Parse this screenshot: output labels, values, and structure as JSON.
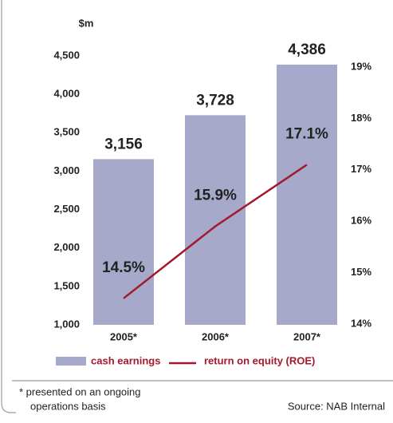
{
  "chart_data": {
    "type": "bar",
    "y_label": "$m",
    "categories": [
      "2005*",
      "2006*",
      "2007*"
    ],
    "series": [
      {
        "name": "cash earnings",
        "type": "bar",
        "color": "#a6a9ca",
        "values": [
          3156,
          3728,
          4386
        ],
        "value_labels": [
          "3,156",
          "3,728",
          "4,386"
        ]
      },
      {
        "name": "return on equity (ROE)",
        "type": "line",
        "axis": "y2",
        "color": "#a3192c",
        "values": [
          14.5,
          15.9,
          17.1
        ],
        "value_labels": [
          "14.5%",
          "15.9%",
          "17.1%"
        ]
      }
    ],
    "ylim": [
      1000,
      4500
    ],
    "yticks": [
      {
        "value": 1000,
        "label": "1,000"
      },
      {
        "value": 1500,
        "label": "1,500"
      },
      {
        "value": 2000,
        "label": "2,000"
      },
      {
        "value": 2500,
        "label": "2,500"
      },
      {
        "value": 3000,
        "label": "3,000"
      },
      {
        "value": 3500,
        "label": "3,500"
      },
      {
        "value": 4000,
        "label": "4,000"
      },
      {
        "value": 4500,
        "label": "4,500"
      }
    ],
    "y2lim": [
      14,
      19
    ],
    "y2ticks": [
      {
        "value": 14,
        "label": "14%"
      },
      {
        "value": 15,
        "label": "15%"
      },
      {
        "value": 16,
        "label": "16%"
      },
      {
        "value": 17,
        "label": "17%"
      },
      {
        "value": 18,
        "label": "18%"
      },
      {
        "value": 19,
        "label": "19%"
      }
    ],
    "footnote": [
      "* presented on an ongoing",
      "operations basis"
    ],
    "source": "Source: NAB Internal"
  }
}
